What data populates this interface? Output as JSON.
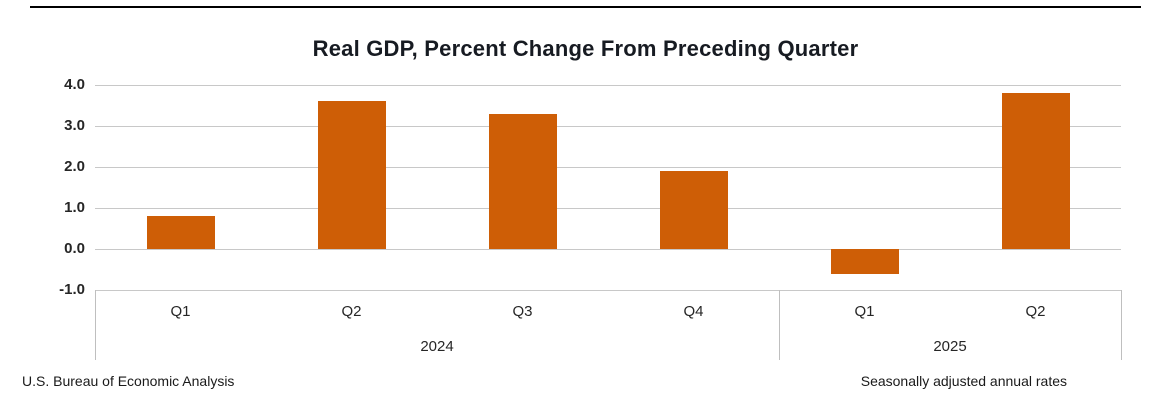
{
  "chart_data": {
    "type": "bar",
    "title": "Real GDP, Percent Change From Preceding Quarter",
    "groups": [
      {
        "label": "2024",
        "categories": [
          "Q1",
          "Q2",
          "Q3",
          "Q4"
        ],
        "values": [
          0.8,
          3.6,
          3.3,
          1.9
        ]
      },
      {
        "label": "2025",
        "categories": [
          "Q1",
          "Q2"
        ],
        "values": [
          -0.6,
          3.8
        ]
      }
    ],
    "categories": [
      "Q1",
      "Q2",
      "Q3",
      "Q4",
      "Q1",
      "Q2"
    ],
    "values": [
      0.8,
      3.6,
      3.3,
      1.9,
      -0.6,
      3.8
    ],
    "ytick_labels": [
      "4.0",
      "3.0",
      "2.0",
      "1.0",
      "0.0",
      "-1.0"
    ],
    "ylim": [
      -1.0,
      4.0
    ],
    "xlabel": "",
    "ylabel": "",
    "grid": true,
    "legend": "none",
    "bar_color": "#ce5e06",
    "grid_color": "#c8c8c8"
  },
  "footer": {
    "left": "U.S. Bureau of Economic Analysis",
    "right": "Seasonally adjusted annual rates"
  }
}
